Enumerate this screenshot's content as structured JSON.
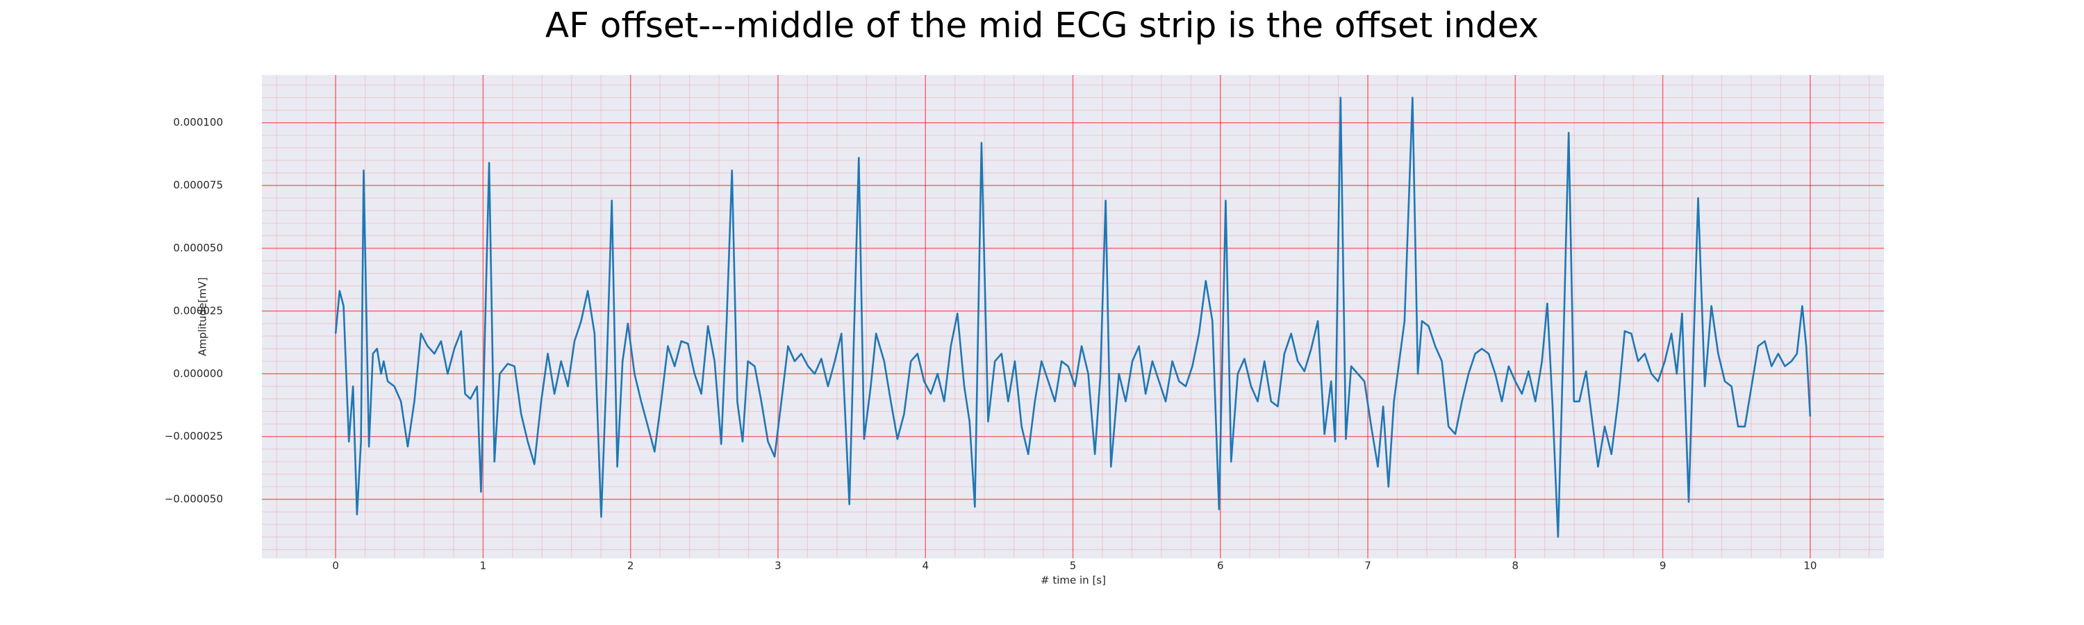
{
  "chart_data": {
    "type": "line",
    "title": "AF offset---middle of the mid ECG strip is the offset index",
    "xlabel": "# time in [s]",
    "ylabel": "Amplitude[mV]",
    "xlim": [
      -0.5,
      10.5
    ],
    "ylim": [
      -7.35e-05,
      0.000119
    ],
    "xticks": [
      0,
      1,
      2,
      3,
      4,
      5,
      6,
      7,
      8,
      9,
      10
    ],
    "yticks": [
      {
        "value": -5e-05,
        "label": "−0.000050"
      },
      {
        "value": -2.5e-05,
        "label": "−0.000025"
      },
      {
        "value": 0,
        "label": "0.000000"
      },
      {
        "value": 2.5e-05,
        "label": "0.000025"
      },
      {
        "value": 5e-05,
        "label": "0.000050"
      },
      {
        "value": 7.5e-05,
        "label": "0.000075"
      },
      {
        "value": 0.0001,
        "label": "0.000100"
      }
    ],
    "grid": true,
    "minor_grid": true,
    "grid_color": "#ff0000",
    "background": "#eaeaf2",
    "color": "#1f77b4",
    "x": [
      0.0,
      0.027,
      0.054,
      0.09,
      0.118,
      0.145,
      0.172,
      0.19,
      0.226,
      0.253,
      0.281,
      0.308,
      0.326,
      0.353,
      0.398,
      0.443,
      0.489,
      0.534,
      0.579,
      0.624,
      0.67,
      0.715,
      0.76,
      0.805,
      0.851,
      0.878,
      0.914,
      0.959,
      0.986,
      1.041,
      1.077,
      1.113,
      1.167,
      1.213,
      1.258,
      1.303,
      1.348,
      1.394,
      1.439,
      1.484,
      1.529,
      1.575,
      1.62,
      1.665,
      1.71,
      1.756,
      1.801,
      1.837,
      1.873,
      1.91,
      1.946,
      1.982,
      2.027,
      2.072,
      2.118,
      2.163,
      2.208,
      2.253,
      2.299,
      2.344,
      2.389,
      2.434,
      2.48,
      2.525,
      2.57,
      2.615,
      2.652,
      2.688,
      2.724,
      2.76,
      2.796,
      2.842,
      2.887,
      2.932,
      2.977,
      3.023,
      3.068,
      3.113,
      3.158,
      3.204,
      3.249,
      3.294,
      3.339,
      3.385,
      3.43,
      3.484,
      3.548,
      3.584,
      3.629,
      3.665,
      3.72,
      3.765,
      3.81,
      3.855,
      3.901,
      3.946,
      3.991,
      4.036,
      4.082,
      4.127,
      4.172,
      4.217,
      4.263,
      4.299,
      4.335,
      4.38,
      4.425,
      4.471,
      4.516,
      4.561,
      4.606,
      4.652,
      4.697,
      4.742,
      4.787,
      4.833,
      4.878,
      4.923,
      4.968,
      5.014,
      5.059,
      5.104,
      5.149,
      5.186,
      5.222,
      5.258,
      5.312,
      5.358,
      5.403,
      5.448,
      5.493,
      5.539,
      5.584,
      5.629,
      5.674,
      5.72,
      5.765,
      5.81,
      5.855,
      5.901,
      5.946,
      5.991,
      6.036,
      6.073,
      6.118,
      6.163,
      6.208,
      6.253,
      6.299,
      6.344,
      6.389,
      6.434,
      6.48,
      6.525,
      6.57,
      6.616,
      6.661,
      6.706,
      6.751,
      6.778,
      6.815,
      6.851,
      6.887,
      6.932,
      6.977,
      7.023,
      7.068,
      7.104,
      7.14,
      7.177,
      7.213,
      7.249,
      7.303,
      7.339,
      7.367,
      7.412,
      7.457,
      7.502,
      7.547,
      7.593,
      7.638,
      7.683,
      7.728,
      7.774,
      7.819,
      7.864,
      7.909,
      7.955,
      8.0,
      8.045,
      8.09,
      8.136,
      8.181,
      8.217,
      8.253,
      8.29,
      8.326,
      8.362,
      8.398,
      8.434,
      8.48,
      8.516,
      8.561,
      8.606,
      8.652,
      8.697,
      8.742,
      8.787,
      8.833,
      8.878,
      8.923,
      8.968,
      9.014,
      9.059,
      9.095,
      9.131,
      9.176,
      9.24,
      9.285,
      9.33,
      9.376,
      9.421,
      9.466,
      9.511,
      9.557,
      9.602,
      9.647,
      9.692,
      9.738,
      9.783,
      9.828,
      9.873,
      9.91,
      9.946,
      9.973,
      10.0
    ],
    "values": [
      1.6e-05,
      3.3e-05,
      2.7e-05,
      -2.7e-05,
      -5e-06,
      -5.6e-05,
      -2.7e-05,
      8.1e-05,
      -2.9e-05,
      8e-06,
      1e-05,
      0,
      5e-06,
      -3e-06,
      -5e-06,
      -1.1e-05,
      -2.9e-05,
      -1.1e-05,
      1.6e-05,
      1.1e-05,
      8e-06,
      1.3e-05,
      0,
      1e-05,
      1.7e-05,
      -8e-06,
      -1e-05,
      -5e-06,
      -4.7e-05,
      8.4e-05,
      -3.5e-05,
      0,
      4e-06,
      3e-06,
      -1.6e-05,
      -2.7e-05,
      -3.6e-05,
      -1.1e-05,
      8e-06,
      -8e-06,
      5e-06,
      -5e-06,
      1.3e-05,
      2.1e-05,
      3.3e-05,
      1.6e-05,
      -5.7e-05,
      0,
      6.9e-05,
      -3.7e-05,
      5e-06,
      2e-05,
      0,
      -1.1e-05,
      -2.1e-05,
      -3.1e-05,
      -1.1e-05,
      1.1e-05,
      3e-06,
      1.3e-05,
      1.2e-05,
      0,
      -8e-06,
      1.9e-05,
      5e-06,
      -2.8e-05,
      2.1e-05,
      8.1e-05,
      -1.1e-05,
      -2.7e-05,
      5e-06,
      3e-06,
      -1.1e-05,
      -2.7e-05,
      -3.3e-05,
      -1.1e-05,
      1.1e-05,
      5e-06,
      8e-06,
      3e-06,
      0,
      6e-06,
      -5e-06,
      5e-06,
      1.6e-05,
      -5.2e-05,
      8.6e-05,
      -2.6e-05,
      -5e-06,
      1.6e-05,
      5e-06,
      -1.1e-05,
      -2.6e-05,
      -1.6e-05,
      5e-06,
      8e-06,
      -3e-06,
      -8e-06,
      0,
      -1.1e-05,
      1.1e-05,
      2.4e-05,
      -5e-06,
      -1.9e-05,
      -5.3e-05,
      9.2e-05,
      -1.9e-05,
      5e-06,
      8e-06,
      -1.1e-05,
      5e-06,
      -2.1e-05,
      -3.2e-05,
      -1.1e-05,
      5e-06,
      -3e-06,
      -1.1e-05,
      5e-06,
      3e-06,
      -5e-06,
      1.1e-05,
      0,
      -3.2e-05,
      -1e-06,
      6.9e-05,
      -3.7e-05,
      0,
      -1.1e-05,
      5e-06,
      1.1e-05,
      -8e-06,
      5e-06,
      -3e-06,
      -1.1e-05,
      5e-06,
      -3e-06,
      -5e-06,
      3e-06,
      1.6e-05,
      3.7e-05,
      2.1e-05,
      -5.4e-05,
      6.9e-05,
      -3.5e-05,
      0,
      6e-06,
      -5e-06,
      -1.1e-05,
      5e-06,
      -1.1e-05,
      -1.3e-05,
      8e-06,
      1.6e-05,
      5e-06,
      1e-06,
      1e-05,
      2.1e-05,
      -2.4e-05,
      -3e-06,
      -2.7e-05,
      0.00011,
      -2.6e-05,
      3e-06,
      0,
      -3e-06,
      -2.1e-05,
      -3.7e-05,
      -1.3e-05,
      -4.5e-05,
      -1.1e-05,
      5e-06,
      2.1e-05,
      0.00011,
      0,
      2.1e-05,
      1.9e-05,
      1.1e-05,
      5e-06,
      -2.1e-05,
      -2.4e-05,
      -1.1e-05,
      0,
      8e-06,
      1e-05,
      8e-06,
      0,
      -1.1e-05,
      3e-06,
      -3e-06,
      -8e-06,
      1e-06,
      -1.1e-05,
      5e-06,
      2.8e-05,
      -1.3e-05,
      -6.5e-05,
      1.1e-05,
      9.6e-05,
      -1.1e-05,
      -1.1e-05,
      1e-06,
      -1.6e-05,
      -3.7e-05,
      -2.1e-05,
      -3.2e-05,
      -1.1e-05,
      1.7e-05,
      1.6e-05,
      5e-06,
      8e-06,
      0,
      -3e-06,
      5e-06,
      1.6e-05,
      0,
      2.4e-05,
      -5.1e-05,
      7e-05,
      -5e-06,
      2.7e-05,
      8e-06,
      -3e-06,
      -5e-06,
      -2.1e-05,
      -2.1e-05,
      -5e-06,
      1.1e-05,
      1.3e-05,
      3e-06,
      8e-06,
      3e-06,
      5e-06,
      8e-06,
      2.7e-05,
      1.1e-05,
      -1.7e-05
    ]
  }
}
